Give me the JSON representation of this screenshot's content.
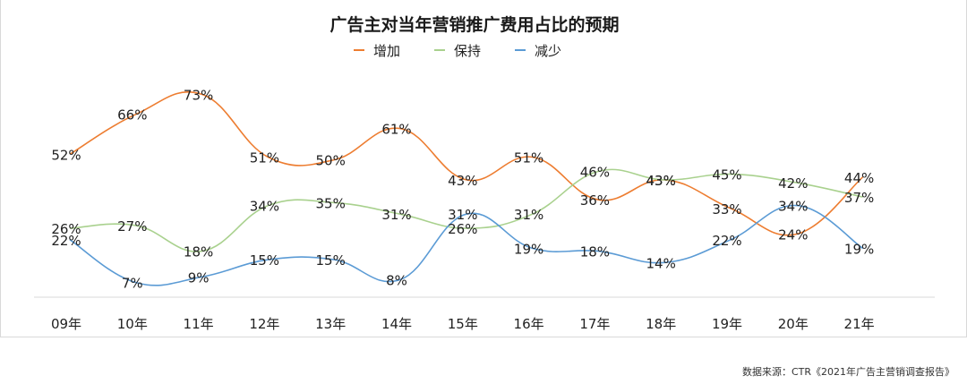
{
  "chart_data": {
    "type": "line",
    "title": "广告主对当年营销推广费用占比的预期",
    "categories": [
      "09年",
      "10年",
      "11年",
      "12年",
      "13年",
      "14年",
      "15年",
      "16年",
      "17年",
      "18年",
      "19年",
      "20年",
      "21年"
    ],
    "series": [
      {
        "name": "增加",
        "color": "#ed7d31",
        "values": [
          52,
          66,
          73,
          51,
          50,
          61,
          43,
          51,
          36,
          43,
          33,
          24,
          44
        ]
      },
      {
        "name": "保持",
        "color": "#a9d18e",
        "values": [
          26,
          27,
          18,
          34,
          35,
          31,
          26,
          31,
          46,
          43,
          45,
          42,
          37
        ]
      },
      {
        "name": "减少",
        "color": "#5b9bd5",
        "values": [
          22,
          7,
          9,
          15,
          15,
          8,
          31,
          19,
          18,
          14,
          22,
          34,
          19
        ]
      }
    ],
    "value_suffix": "%",
    "legend_position": "top",
    "grid": false
  },
  "source_note": "数据来源：CTR《2021年广告主营销调查报告》"
}
